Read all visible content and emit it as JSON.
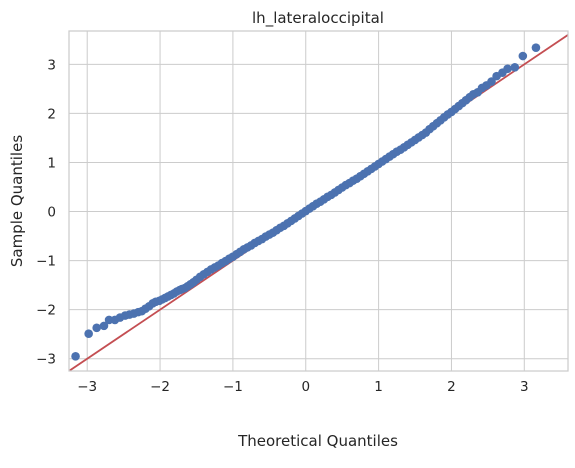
{
  "chart_data": {
    "type": "scatter",
    "title": "lh_lateraloccipital",
    "xlabel": "Theoretical Quantiles",
    "ylabel": "Sample Quantiles",
    "xlim": [
      -3.25,
      3.6
    ],
    "ylim": [
      -3.25,
      3.68
    ],
    "xticks": [
      -3,
      -2,
      -1,
      0,
      1,
      2,
      3
    ],
    "yticks": [
      -3,
      -2,
      -1,
      0,
      1,
      2,
      3
    ],
    "xtick_labels": [
      "−3",
      "−2",
      "−1",
      "0",
      "1",
      "2",
      "3"
    ],
    "ytick_labels": [
      "−3",
      "−2",
      "−1",
      "0",
      "1",
      "2",
      "3"
    ],
    "grid": true,
    "marker_color": "#4c72b0",
    "reference_line": {
      "from": [
        -3.25,
        -3.25
      ],
      "to": [
        3.6,
        3.6
      ],
      "color": "#c44e52"
    },
    "series": [
      {
        "x": [
          -3.16,
          -2.98,
          -2.87,
          -2.77,
          -2.7,
          -2.62,
          -2.55,
          -2.48,
          -2.42,
          -2.36,
          -2.3,
          -2.25,
          -2.2,
          -2.15,
          -2.1,
          -2.06,
          -2.01,
          -1.97,
          -1.93,
          -1.89,
          -1.85,
          -1.81,
          -1.77,
          -1.73,
          -1.7,
          -1.66,
          -1.62,
          -1.58,
          -1.54,
          -1.5,
          -1.45,
          -1.4,
          -1.35,
          -1.3,
          -1.25,
          -1.2,
          -1.15,
          -1.1,
          -1.05,
          -1.0,
          -0.95,
          -0.9,
          -0.85,
          -0.8,
          -0.75,
          -0.7,
          -0.65,
          -0.6,
          -0.55,
          -0.5,
          -0.45,
          -0.4,
          -0.35,
          -0.3,
          -0.25,
          -0.2,
          -0.15,
          -0.1,
          -0.05,
          0.0,
          0.05,
          0.1,
          0.15,
          0.2,
          0.25,
          0.3,
          0.35,
          0.4,
          0.45,
          0.5,
          0.55,
          0.6,
          0.65,
          0.7,
          0.75,
          0.8,
          0.85,
          0.9,
          0.95,
          1.0,
          1.05,
          1.1,
          1.15,
          1.2,
          1.25,
          1.3,
          1.35,
          1.4,
          1.45,
          1.5,
          1.55,
          1.6,
          1.65,
          1.7,
          1.75,
          1.8,
          1.85,
          1.9,
          1.95,
          2.0,
          2.05,
          2.1,
          2.15,
          2.2,
          2.25,
          2.3,
          2.36,
          2.42,
          2.48,
          2.55,
          2.62,
          2.7,
          2.77,
          2.87,
          2.98,
          3.16
        ],
        "y": [
          -2.95,
          -2.49,
          -2.37,
          -2.33,
          -2.21,
          -2.21,
          -2.16,
          -2.12,
          -2.1,
          -2.08,
          -2.05,
          -2.03,
          -1.98,
          -1.93,
          -1.87,
          -1.84,
          -1.82,
          -1.79,
          -1.76,
          -1.73,
          -1.7,
          -1.67,
          -1.63,
          -1.6,
          -1.58,
          -1.56,
          -1.52,
          -1.48,
          -1.44,
          -1.39,
          -1.33,
          -1.28,
          -1.23,
          -1.18,
          -1.14,
          -1.1,
          -1.05,
          -1.01,
          -0.96,
          -0.92,
          -0.87,
          -0.82,
          -0.77,
          -0.73,
          -0.69,
          -0.64,
          -0.6,
          -0.56,
          -0.51,
          -0.47,
          -0.43,
          -0.38,
          -0.33,
          -0.29,
          -0.24,
          -0.19,
          -0.14,
          -0.09,
          -0.04,
          0.01,
          0.06,
          0.11,
          0.16,
          0.2,
          0.25,
          0.3,
          0.34,
          0.39,
          0.44,
          0.49,
          0.54,
          0.58,
          0.63,
          0.67,
          0.72,
          0.77,
          0.82,
          0.87,
          0.92,
          0.97,
          1.02,
          1.07,
          1.12,
          1.17,
          1.22,
          1.26,
          1.31,
          1.36,
          1.41,
          1.46,
          1.51,
          1.56,
          1.61,
          1.68,
          1.74,
          1.8,
          1.86,
          1.92,
          1.98,
          2.03,
          2.09,
          2.15,
          2.21,
          2.27,
          2.33,
          2.39,
          2.43,
          2.52,
          2.57,
          2.65,
          2.76,
          2.83,
          2.91,
          2.94,
          3.17,
          3.34
        ]
      }
    ]
  }
}
